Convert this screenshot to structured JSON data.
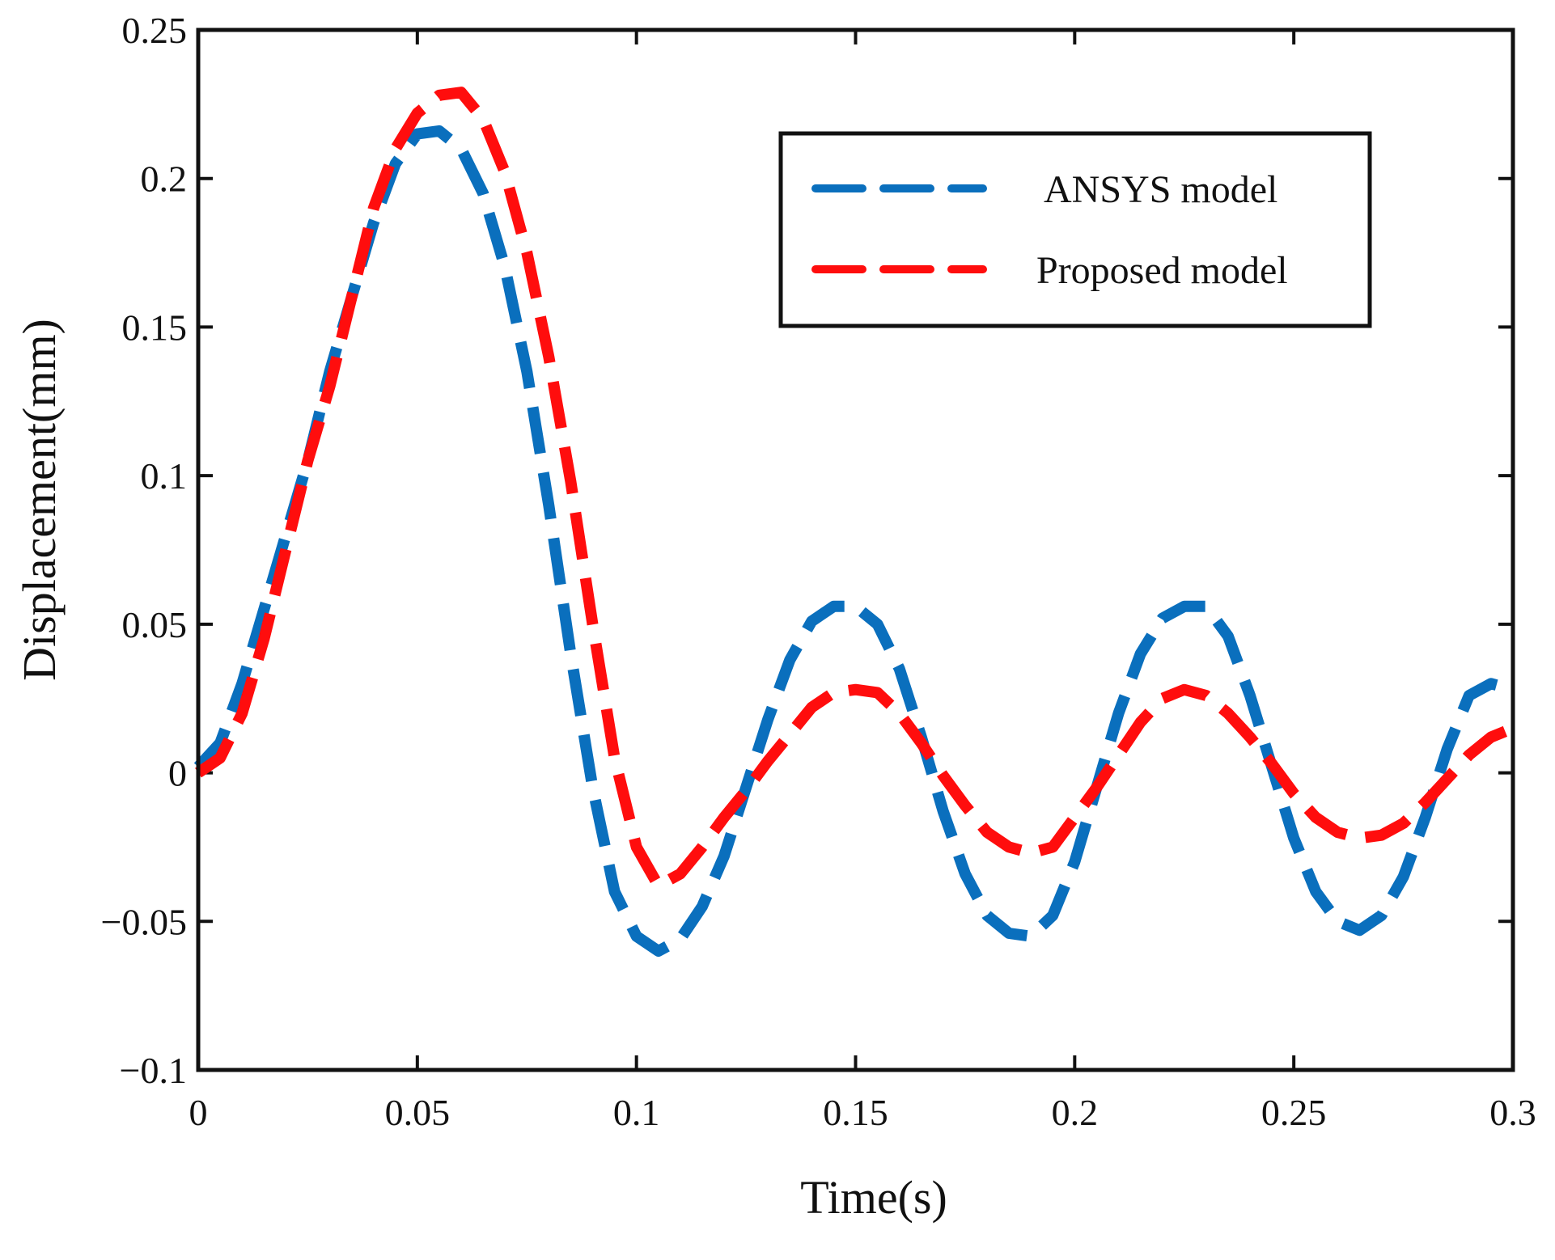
{
  "chart_data": {
    "type": "line",
    "title": "",
    "xlabel": "Time(s)",
    "ylabel": "Displacement(mm)",
    "xlim": [
      0,
      0.3
    ],
    "ylim": [
      -0.1,
      0.25
    ],
    "xticks": [
      0,
      0.05,
      0.1,
      0.15,
      0.2,
      0.25,
      0.3
    ],
    "xtick_labels": [
      "0",
      "0.05",
      "0.1",
      "0.15",
      "0.2",
      "0.25",
      "0.3"
    ],
    "yticks": [
      -0.1,
      -0.05,
      0,
      0.05,
      0.1,
      0.15,
      0.2,
      0.25
    ],
    "ytick_labels": [
      "−0.1",
      "−0.05",
      "0",
      "0.05",
      "0.1",
      "0.15",
      "0.2",
      "0.25"
    ],
    "grid": false,
    "legend_position": "top-right",
    "series": [
      {
        "name": "ANSYS model",
        "color": "#0a6fbd",
        "style": "dashed",
        "x": [
          0,
          0.005,
          0.01,
          0.015,
          0.02,
          0.025,
          0.03,
          0.035,
          0.04,
          0.045,
          0.05,
          0.055,
          0.06,
          0.065,
          0.07,
          0.075,
          0.08,
          0.085,
          0.09,
          0.095,
          0.1,
          0.105,
          0.11,
          0.115,
          0.12,
          0.125,
          0.13,
          0.135,
          0.14,
          0.145,
          0.15,
          0.155,
          0.16,
          0.165,
          0.17,
          0.175,
          0.18,
          0.185,
          0.19,
          0.195,
          0.2,
          0.205,
          0.21,
          0.215,
          0.22,
          0.225,
          0.23,
          0.235,
          0.24,
          0.245,
          0.25,
          0.255,
          0.26,
          0.265,
          0.27,
          0.275,
          0.28,
          0.285,
          0.29,
          0.295,
          0.3
        ],
        "y": [
          0.002,
          0.01,
          0.03,
          0.055,
          0.08,
          0.105,
          0.135,
          0.16,
          0.185,
          0.205,
          0.215,
          0.216,
          0.21,
          0.195,
          0.17,
          0.135,
          0.09,
          0.04,
          -0.005,
          -0.04,
          -0.055,
          -0.06,
          -0.056,
          -0.045,
          -0.028,
          -0.005,
          0.018,
          0.038,
          0.051,
          0.056,
          0.056,
          0.05,
          0.035,
          0.012,
          -0.013,
          -0.034,
          -0.048,
          -0.054,
          -0.055,
          -0.048,
          -0.03,
          -0.005,
          0.02,
          0.04,
          0.052,
          0.056,
          0.056,
          0.046,
          0.026,
          0.002,
          -0.022,
          -0.04,
          -0.05,
          -0.053,
          -0.048,
          -0.035,
          -0.015,
          0.008,
          0.026,
          0.03,
          0.028
        ]
      },
      {
        "name": "Proposed model",
        "color": "#ff0d0d",
        "style": "dashed",
        "x": [
          0,
          0.005,
          0.01,
          0.015,
          0.02,
          0.025,
          0.03,
          0.035,
          0.04,
          0.045,
          0.05,
          0.055,
          0.06,
          0.065,
          0.07,
          0.075,
          0.08,
          0.085,
          0.09,
          0.095,
          0.1,
          0.105,
          0.11,
          0.115,
          0.12,
          0.125,
          0.13,
          0.135,
          0.14,
          0.145,
          0.15,
          0.155,
          0.16,
          0.165,
          0.17,
          0.175,
          0.18,
          0.185,
          0.19,
          0.195,
          0.2,
          0.205,
          0.21,
          0.215,
          0.22,
          0.225,
          0.23,
          0.235,
          0.24,
          0.245,
          0.25,
          0.255,
          0.26,
          0.265,
          0.27,
          0.275,
          0.28,
          0.285,
          0.29,
          0.295,
          0.3
        ],
        "y": [
          0.0,
          0.005,
          0.02,
          0.045,
          0.075,
          0.105,
          0.13,
          0.16,
          0.19,
          0.21,
          0.222,
          0.228,
          0.229,
          0.22,
          0.202,
          0.175,
          0.14,
          0.098,
          0.05,
          0.005,
          -0.025,
          -0.038,
          -0.034,
          -0.025,
          -0.015,
          -0.006,
          0.004,
          0.013,
          0.022,
          0.027,
          0.028,
          0.027,
          0.02,
          0.01,
          -0.001,
          -0.011,
          -0.02,
          -0.025,
          -0.027,
          -0.025,
          -0.015,
          -0.005,
          0.006,
          0.017,
          0.025,
          0.028,
          0.026,
          0.02,
          0.012,
          0.003,
          -0.007,
          -0.015,
          -0.02,
          -0.022,
          -0.021,
          -0.017,
          -0.01,
          -0.002,
          0.006,
          0.012,
          0.015
        ]
      }
    ]
  }
}
